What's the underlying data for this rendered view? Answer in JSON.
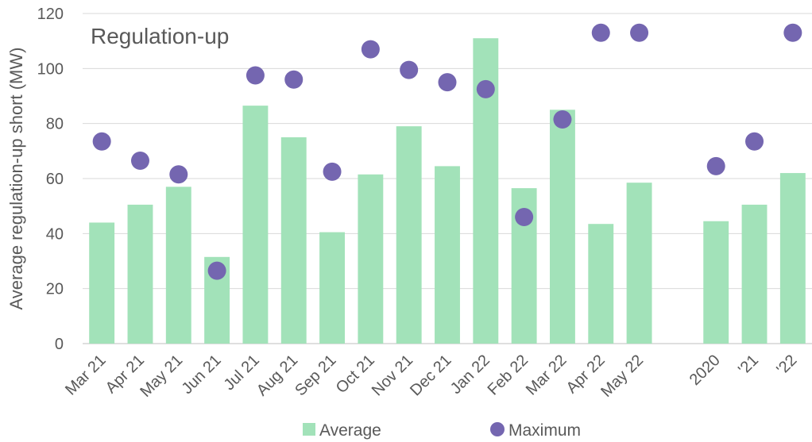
{
  "chart_data": {
    "type": "bar",
    "title": "Regulation-up",
    "ylabel": "Average regulation-up short (MW)",
    "xlabel": "",
    "ylim": [
      0,
      120
    ],
    "yticks": [
      0,
      20,
      40,
      60,
      80,
      100,
      120
    ],
    "grid": true,
    "legend_position": "bottom",
    "categories": [
      "Mar 21",
      "Apr 21",
      "May 21",
      "Jun 21",
      "Jul 21",
      "Aug 21",
      "Sep 21",
      "Oct 21",
      "Nov 21",
      "Dec 21",
      "Jan 22",
      "Feb 22",
      "Mar 22",
      "Apr 22",
      "May 22",
      "",
      "2020",
      "'21",
      "'22"
    ],
    "series": [
      {
        "name": "Average",
        "type": "bar",
        "color": "#a2e2b9",
        "values": [
          44,
          50.5,
          57,
          31.5,
          86.5,
          75,
          40.5,
          61.5,
          79,
          64.5,
          111,
          56.5,
          85,
          43.5,
          58.5,
          null,
          44.5,
          50.5,
          62
        ]
      },
      {
        "name": "Maximum",
        "type": "scatter",
        "color": "#7466b0",
        "values": [
          73.5,
          66.5,
          61.5,
          26.5,
          97.5,
          96,
          62.5,
          107,
          99.5,
          95,
          92.5,
          46,
          81.5,
          113,
          113,
          null,
          64.5,
          73.5,
          113
        ]
      }
    ]
  }
}
